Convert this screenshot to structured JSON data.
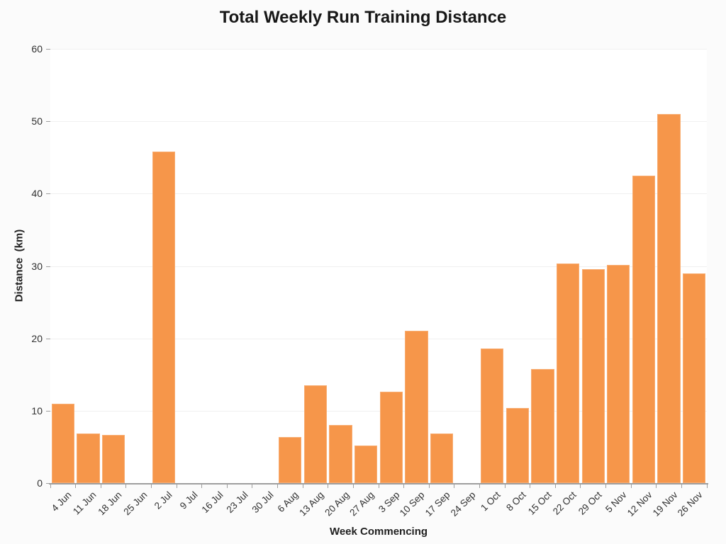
{
  "chart_data": {
    "type": "bar",
    "title": "Total Weekly Run Training Distance",
    "xlabel": "Week Commencing",
    "ylabel": "Distance  (km)",
    "categories": [
      "4 Jun",
      "11 Jun",
      "18 Jun",
      "25 Jun",
      "2 Jul",
      "9 Jul",
      "16 Jul",
      "23 Jul",
      "30 Jul",
      "6 Aug",
      "13 Aug",
      "20 Aug",
      "27 Aug",
      "3 Sep",
      "10 Sep",
      "17 Sep",
      "24 Sep",
      "1 Oct",
      "8 Oct",
      "15 Oct",
      "22 Oct",
      "29 Oct",
      "5 Nov",
      "12 Nov",
      "19 Nov",
      "26 Nov"
    ],
    "values": [
      11,
      6.9,
      6.7,
      0,
      45.8,
      0,
      0,
      0,
      0,
      6.4,
      13.5,
      8,
      5.2,
      12.6,
      21,
      6.9,
      0,
      18.6,
      10.4,
      15.8,
      30.3,
      29.6,
      30.1,
      42.5,
      51,
      29
    ],
    "ylim": [
      0,
      60
    ],
    "ytick_interval": 10,
    "ytick_labels": [
      "0",
      "10",
      "20",
      "30",
      "40",
      "50",
      "60"
    ],
    "grid": "horizontal-only",
    "legend": "none",
    "series_name": "Total Weekly Run Training Distance",
    "colors": {
      "bar": "#f6964a",
      "bar_border": "#f8ad72",
      "axis_line": "#9e9e9e",
      "gridline": "#f0f0f0",
      "plot_background": "#ffffff",
      "page_background": "#fbfbfb",
      "text": "#262626"
    }
  }
}
